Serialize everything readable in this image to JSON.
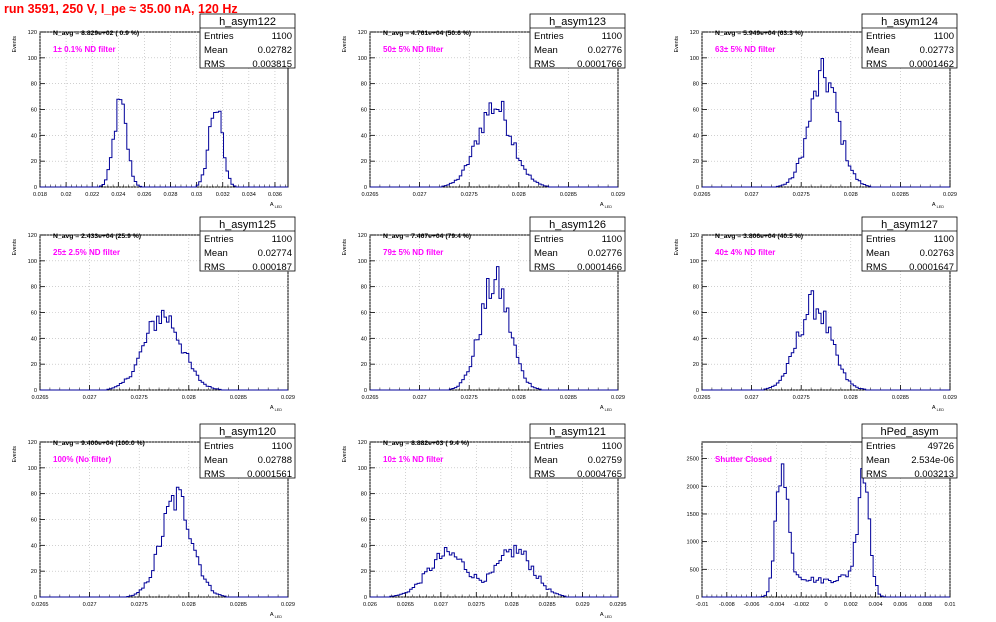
{
  "page": {
    "title": "run 3591,   250 V, I_pe ≈ 35.00 nA, 120 Hz"
  },
  "colors": {
    "histogram": "#000099",
    "annotation": "#ff00ff",
    "title": "#ff0000",
    "grid": "#b4b4b4"
  },
  "chart_data": [
    {
      "type": "histogram",
      "name": "h_asym122",
      "stats": {
        "entries": "1100",
        "mean": "0.02782",
        "rms": "0.003815"
      },
      "navg": "N_avg = 8.829e+02 ( 0.9 %)",
      "filter": "1± 0.1% ND filter",
      "xlim": [
        0.018,
        0.037
      ],
      "ylim": [
        0,
        120
      ],
      "xticks": [
        0.018,
        0.02,
        0.022,
        0.024,
        0.026,
        0.028,
        0.03,
        0.032,
        0.034,
        0.036
      ],
      "xticklabels": [
        "0.018",
        "0.02",
        "0.022",
        "0.024",
        "0.026",
        "0.028",
        "0.03",
        "0.032",
        "0.034",
        "0.036"
      ],
      "yticks": [
        0,
        20,
        40,
        60,
        80,
        100,
        120
      ],
      "xlabel": "A_LED",
      "ylabel": "Events",
      "peaks": [
        {
          "mu": 0.02415,
          "sigma": 0.0005,
          "height": 63
        },
        {
          "mu": 0.03145,
          "sigma": 0.0005,
          "height": 63
        }
      ]
    },
    {
      "type": "histogram",
      "name": "h_asym123",
      "stats": {
        "entries": "1100",
        "mean": "0.02776",
        "rms": "0.0001766"
      },
      "navg": "N_avg = 4.761e+04 (50.6 %)",
      "filter": "50± 5% ND filter",
      "xlim": [
        0.0265,
        0.029
      ],
      "ylim": [
        0,
        120
      ],
      "xticks": [
        0.0265,
        0.027,
        0.0275,
        0.028,
        0.0285,
        0.029
      ],
      "xticklabels": [
        "0.0265",
        "0.027",
        "0.0275",
        "0.028",
        "0.0285",
        "0.029"
      ],
      "yticks": [
        0,
        20,
        40,
        60,
        80,
        100,
        120
      ],
      "xlabel": "A_LED",
      "ylabel": "Events",
      "peaks": [
        {
          "mu": 0.02776,
          "sigma": 0.000175,
          "height": 63
        }
      ]
    },
    {
      "type": "histogram",
      "name": "h_asym124",
      "stats": {
        "entries": "1100",
        "mean": "0.02773",
        "rms": "0.0001462"
      },
      "navg": "N_avg = 5.949e+04 (63.3 %)",
      "filter": "63± 5% ND filter",
      "xlim": [
        0.0265,
        0.029
      ],
      "ylim": [
        0,
        120
      ],
      "xticks": [
        0.0265,
        0.027,
        0.0275,
        0.028,
        0.0285,
        0.029
      ],
      "xticklabels": [
        "0.0265",
        "0.027",
        "0.0275",
        "0.028",
        "0.0285",
        "0.029"
      ],
      "yticks": [
        0,
        20,
        40,
        60,
        80,
        100,
        120
      ],
      "xlabel": "A_LED",
      "ylabel": "Events",
      "peaks": [
        {
          "mu": 0.02773,
          "sigma": 0.000146,
          "height": 85
        }
      ]
    },
    {
      "type": "histogram",
      "name": "h_asym125",
      "stats": {
        "entries": "1100",
        "mean": "0.02774",
        "rms": "0.000187"
      },
      "navg": "N_avg = 2.433e+04 (25.9 %)",
      "filter": "25± 2.5% ND filter",
      "xlim": [
        0.0265,
        0.029
      ],
      "ylim": [
        0,
        120
      ],
      "xticks": [
        0.0265,
        0.027,
        0.0275,
        0.028,
        0.0285,
        0.029
      ],
      "xticklabels": [
        "0.0265",
        "0.027",
        "0.0275",
        "0.028",
        "0.0285",
        "0.029"
      ],
      "yticks": [
        0,
        20,
        40,
        60,
        80,
        100,
        120
      ],
      "xlabel": "A_LED",
      "ylabel": "Events",
      "peaks": [
        {
          "mu": 0.02774,
          "sigma": 0.000187,
          "height": 58
        }
      ]
    },
    {
      "type": "histogram",
      "name": "h_asym126",
      "stats": {
        "entries": "1100",
        "mean": "0.02776",
        "rms": "0.0001466"
      },
      "navg": "N_avg = 7.467e+04 (79.4 %)",
      "filter": "79± 5% ND filter",
      "xlim": [
        0.0265,
        0.029
      ],
      "ylim": [
        0,
        120
      ],
      "xticks": [
        0.0265,
        0.027,
        0.0275,
        0.028,
        0.0285,
        0.029
      ],
      "xticklabels": [
        "0.0265",
        "0.027",
        "0.0275",
        "0.028",
        "0.0285",
        "0.029"
      ],
      "yticks": [
        0,
        20,
        40,
        60,
        80,
        100,
        120
      ],
      "xlabel": "A_LED",
      "ylabel": "Events",
      "peaks": [
        {
          "mu": 0.02776,
          "sigma": 0.000147,
          "height": 83
        }
      ]
    },
    {
      "type": "histogram",
      "name": "h_asym127",
      "stats": {
        "entries": "1100",
        "mean": "0.02763",
        "rms": "0.0001647"
      },
      "navg": "N_avg = 3.806e+04 (40.5 %)",
      "filter": "40± 4% ND filter",
      "xlim": [
        0.0265,
        0.029
      ],
      "ylim": [
        0,
        120
      ],
      "xticks": [
        0.0265,
        0.027,
        0.0275,
        0.028,
        0.0285,
        0.029
      ],
      "xticklabels": [
        "0.0265",
        "0.027",
        "0.0275",
        "0.028",
        "0.0285",
        "0.029"
      ],
      "yticks": [
        0,
        20,
        40,
        60,
        80,
        100,
        120
      ],
      "xlabel": "A_LED",
      "ylabel": "Events",
      "peaks": [
        {
          "mu": 0.02763,
          "sigma": 0.000165,
          "height": 66
        }
      ]
    },
    {
      "type": "histogram",
      "name": "h_asym120",
      "stats": {
        "entries": "1100",
        "mean": "0.02788",
        "rms": "0.0001561"
      },
      "navg": "N_avg = 9.400e+04 (100.0 %)",
      "filter": "100% (No filter)",
      "xlim": [
        0.0265,
        0.029
      ],
      "ylim": [
        0,
        120
      ],
      "xticks": [
        0.0265,
        0.027,
        0.0275,
        0.028,
        0.0285,
        0.029
      ],
      "xticklabels": [
        "0.0265",
        "0.027",
        "0.0275",
        "0.028",
        "0.0285",
        "0.029"
      ],
      "yticks": [
        0,
        20,
        40,
        60,
        80,
        100,
        120
      ],
      "xlabel": "A_LED",
      "ylabel": "Events",
      "peaks": [
        {
          "mu": 0.02788,
          "sigma": 0.000156,
          "height": 76
        }
      ]
    },
    {
      "type": "histogram",
      "name": "h_asym121",
      "stats": {
        "entries": "1100",
        "mean": "0.02759",
        "rms": "0.0004765"
      },
      "navg": "N_avg = 8.882e+03 ( 9.4 %)",
      "filter": "10± 1% ND filter",
      "xlim": [
        0.026,
        0.0295
      ],
      "ylim": [
        0,
        120
      ],
      "xticks": [
        0.026,
        0.0265,
        0.027,
        0.0275,
        0.028,
        0.0285,
        0.029,
        0.0295
      ],
      "xticklabels": [
        "0.026",
        "0.0265",
        "0.027",
        "0.0275",
        "0.028",
        "0.0285",
        "0.029",
        "0.0295"
      ],
      "yticks": [
        0,
        20,
        40,
        60,
        80,
        100,
        120
      ],
      "xlabel": "A_LED",
      "ylabel": "Events",
      "peaks": [
        {
          "mu": 0.0271,
          "sigma": 0.00028,
          "height": 33
        },
        {
          "mu": 0.02805,
          "sigma": 0.00025,
          "height": 36
        }
      ]
    },
    {
      "type": "histogram",
      "name": "hPed_asym",
      "stats": {
        "entries": "49726",
        "mean": "2.534e-06",
        "rms": "0.003213"
      },
      "navg": "",
      "filter": "Shutter Closed",
      "xlim": [
        -0.01,
        0.01
      ],
      "ylim": [
        0,
        2800
      ],
      "xticks": [
        -0.01,
        -0.008,
        -0.006,
        -0.004,
        -0.002,
        0,
        0.002,
        0.004,
        0.006,
        0.008,
        0.01
      ],
      "xticklabels": [
        "-0.01",
        "-0.008",
        "-0.006",
        "-0.004",
        "-0.002",
        "0",
        "0.002",
        "0.004",
        "0.006",
        "0.008",
        "0.01"
      ],
      "yticks": [
        0,
        500,
        1000,
        1500,
        2000,
        2500
      ],
      "xlabel": "",
      "ylabel": "",
      "baseline": 300,
      "peaks": [
        {
          "mu": -0.0036,
          "sigma": 0.00045,
          "height": 2250
        },
        {
          "mu": 0.0031,
          "sigma": 0.00045,
          "height": 2150
        }
      ]
    }
  ]
}
